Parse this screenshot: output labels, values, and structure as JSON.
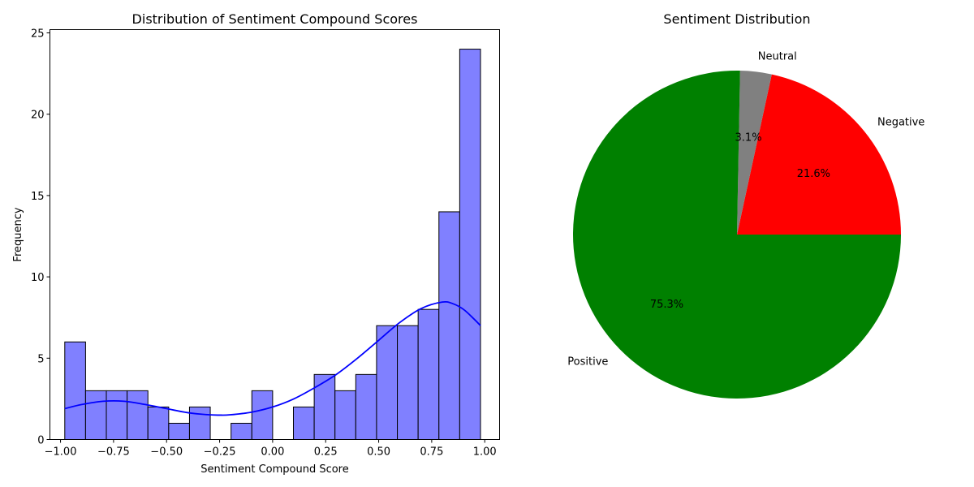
{
  "chart_data": [
    {
      "type": "bar",
      "subtype": "histogram",
      "title": "Distribution of Sentiment Compound Scores",
      "xlabel": "Sentiment Compound Score",
      "ylabel": "Frequency",
      "xlim": [
        -1.05,
        1.07
      ],
      "ylim": [
        0,
        25.2
      ],
      "xticks": [
        -1.0,
        -0.75,
        -0.5,
        -0.25,
        0.0,
        0.25,
        0.5,
        0.75,
        1.0
      ],
      "xtick_labels": [
        "−1.00",
        "−0.75",
        "−0.50",
        "−0.25",
        "0.00",
        "0.25",
        "0.50",
        "0.75",
        "1.00"
      ],
      "yticks": [
        0,
        5,
        10,
        15,
        20,
        25
      ],
      "bin_start": -0.98,
      "bin_width": 0.098,
      "counts": [
        6,
        3,
        3,
        3,
        2,
        1,
        2,
        0,
        1,
        3,
        0,
        2,
        4,
        3,
        4,
        7,
        7,
        8,
        14,
        24
      ],
      "bar_color": "#8080ff",
      "edge_color": "#000000",
      "kde": {
        "color": "#0000ff",
        "x": [
          -0.98,
          -0.9,
          -0.8,
          -0.7,
          -0.6,
          -0.5,
          -0.4,
          -0.3,
          -0.25,
          -0.2,
          -0.1,
          0.0,
          0.1,
          0.2,
          0.3,
          0.4,
          0.5,
          0.6,
          0.7,
          0.8,
          0.85,
          0.9,
          0.95,
          0.98
        ],
        "y": [
          1.9,
          2.15,
          2.35,
          2.35,
          2.15,
          1.9,
          1.65,
          1.52,
          1.5,
          1.52,
          1.68,
          2.0,
          2.5,
          3.2,
          4.0,
          5.0,
          6.1,
          7.2,
          8.05,
          8.45,
          8.35,
          8.0,
          7.4,
          7.0
        ]
      },
      "grid": false
    },
    {
      "type": "pie",
      "title": "Sentiment Distribution",
      "start_angle_deg": 0,
      "slices": [
        {
          "label": "Negative",
          "value": 21.6,
          "pct_label": "21.6%",
          "color": "#ff0000"
        },
        {
          "label": "Neutral",
          "value": 3.1,
          "pct_label": "3.1%",
          "color": "#808080"
        },
        {
          "label": "Positive",
          "value": 75.3,
          "pct_label": "75.3%",
          "color": "#008000"
        }
      ]
    }
  ]
}
